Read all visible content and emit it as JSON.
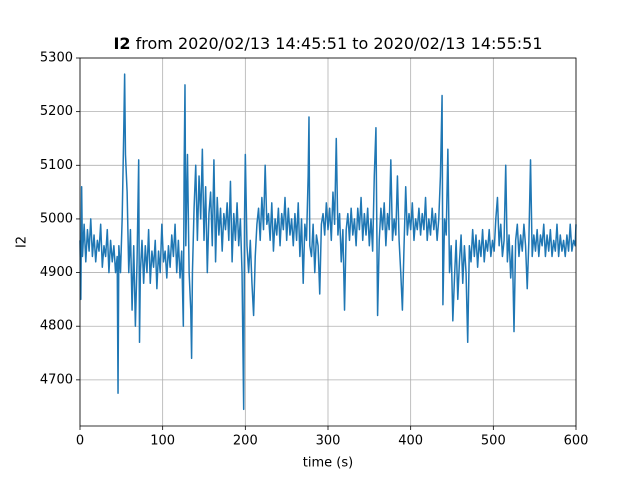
{
  "chart_data": {
    "type": "line",
    "title": {
      "bold": "I2",
      "rest": "from 2020/02/13 14:45:51 to 2020/02/13 14:55:51"
    },
    "xlabel": "time (s)",
    "ylabel": "I2",
    "color": "#1f77b4",
    "grid": true,
    "xlim": [
      0,
      600
    ],
    "xticks": [
      0,
      100,
      200,
      300,
      400,
      500,
      600
    ],
    "ylim": [
      4614,
      5300
    ],
    "yticks": [
      4700,
      4800,
      4900,
      5000,
      5100,
      5200,
      5300
    ],
    "x": [
      0,
      1,
      2,
      3,
      5,
      7,
      9,
      11,
      13,
      15,
      17,
      19,
      21,
      23,
      25,
      27,
      29,
      31,
      33,
      35,
      37,
      39,
      41,
      43,
      45,
      46,
      47,
      49,
      51,
      53,
      54,
      55,
      57,
      59,
      61,
      63,
      65,
      67,
      69,
      71,
      72,
      73,
      75,
      77,
      79,
      81,
      83,
      85,
      87,
      89,
      91,
      93,
      95,
      97,
      99,
      101,
      103,
      105,
      107,
      109,
      111,
      113,
      115,
      117,
      119,
      121,
      123,
      125,
      126,
      127,
      128,
      130,
      132,
      134,
      135,
      136,
      138,
      140,
      142,
      144,
      146,
      148,
      150,
      152,
      154,
      156,
      158,
      160,
      162,
      164,
      166,
      168,
      170,
      172,
      174,
      176,
      178,
      180,
      182,
      184,
      186,
      188,
      190,
      192,
      194,
      196,
      198,
      199,
      200,
      202,
      204,
      206,
      208,
      210,
      212,
      214,
      216,
      218,
      220,
      222,
      224,
      226,
      228,
      230,
      232,
      234,
      236,
      238,
      240,
      242,
      244,
      246,
      248,
      250,
      252,
      254,
      256,
      258,
      260,
      262,
      264,
      266,
      268,
      270,
      272,
      274,
      276,
      277,
      278,
      280,
      282,
      284,
      286,
      288,
      290,
      292,
      294,
      296,
      298,
      300,
      302,
      304,
      306,
      308,
      310,
      312,
      314,
      316,
      318,
      320,
      322,
      324,
      326,
      328,
      330,
      332,
      334,
      336,
      338,
      340,
      342,
      344,
      346,
      348,
      350,
      352,
      354,
      356,
      358,
      360,
      362,
      364,
      366,
      368,
      370,
      372,
      374,
      376,
      378,
      380,
      382,
      384,
      386,
      388,
      390,
      392,
      394,
      396,
      398,
      400,
      402,
      404,
      406,
      408,
      410,
      412,
      414,
      416,
      418,
      420,
      422,
      424,
      426,
      428,
      430,
      432,
      434,
      436,
      438,
      439,
      441,
      443,
      445,
      447,
      449,
      451,
      453,
      455,
      457,
      459,
      461,
      463,
      465,
      467,
      469,
      471,
      473,
      475,
      477,
      479,
      481,
      483,
      485,
      487,
      489,
      491,
      493,
      495,
      497,
      499,
      501,
      503,
      505,
      507,
      509,
      511,
      513,
      515,
      517,
      519,
      521,
      523,
      525,
      527,
      529,
      531,
      533,
      535,
      537,
      539,
      541,
      543,
      545,
      547,
      549,
      551,
      553,
      555,
      557,
      559,
      561,
      563,
      565,
      567,
      569,
      571,
      573,
      575,
      577,
      579,
      581,
      583,
      585,
      587,
      589,
      591,
      593,
      595,
      597,
      599,
      600
    ],
    "values": [
      4960,
      4850,
      5060,
      4930,
      4990,
      4920,
      4980,
      4940,
      5000,
      4930,
      4970,
      4920,
      4960,
      4940,
      4990,
      4910,
      4950,
      4930,
      4980,
      4900,
      4960,
      4920,
      4950,
      4900,
      4930,
      4675,
      4950,
      4900,
      5000,
      5170,
      5270,
      5120,
      5050,
      4900,
      4980,
      4830,
      4950,
      4800,
      4920,
      5110,
      4770,
      4900,
      4960,
      4880,
      4950,
      4900,
      4980,
      4880,
      4940,
      4910,
      4960,
      4870,
      4940,
      4900,
      4990,
      4920,
      4940,
      4890,
      4950,
      4910,
      4970,
      4930,
      4990,
      4900,
      4960,
      4890,
      4940,
      4800,
      5100,
      5250,
      4950,
      5120,
      4900,
      4830,
      4740,
      4900,
      5020,
      5100,
      4960,
      5080,
      5000,
      5130,
      4960,
      5060,
      4900,
      5010,
      5050,
      4950,
      5110,
      4920,
      5040,
      4970,
      5020,
      4940,
      5010,
      4980,
      5030,
      4960,
      5070,
      4920,
      5010,
      4960,
      5030,
      4950,
      5000,
      4900,
      4645,
      5000,
      5120,
      4950,
      4900,
      4960,
      4880,
      4820,
      4930,
      4990,
      5020,
      4960,
      5040,
      4980,
      5100,
      4990,
      5010,
      4960,
      5030,
      4940,
      5000,
      4970,
      5020,
      4950,
      5010,
      4980,
      5040,
      4960,
      5020,
      4970,
      5000,
      4950,
      5010,
      4960,
      5030,
      4930,
      5000,
      4880,
      4990,
      4960,
      5080,
      5190,
      4950,
      4930,
      4990,
      4900,
      4970,
      4950,
      4860,
      4990,
      5010,
      4970,
      5030,
      4980,
      5020,
      4960,
      5050,
      4990,
      5150,
      4970,
      5010,
      4920,
      4980,
      4830,
      4980,
      5010,
      4960,
      5020,
      4970,
      5000,
      4950,
      5020,
      4980,
      5040,
      4960,
      5010,
      4970,
      5020,
      4950,
      5000,
      4940,
      5080,
      5170,
      4820,
      4960,
      5020,
      4980,
      5030,
      4950,
      5010,
      4980,
      5110,
      4960,
      5000,
      4970,
      5080,
      4960,
      4900,
      4830,
      4950,
      5060,
      4970,
      5010,
      4980,
      5030,
      4960,
      5000,
      4980,
      5020,
      4970,
      5010,
      4980,
      5040,
      4960,
      5000,
      4970,
      5020,
      4980,
      5010,
      4960,
      5000,
      5080,
      5230,
      4840,
      5000,
      4970,
      5130,
      4900,
      4950,
      4810,
      4890,
      4960,
      4850,
      4920,
      4970,
      4880,
      4950,
      4900,
      4770,
      4950,
      4920,
      4980,
      4930,
      4970,
      4910,
      4960,
      4930,
      4980,
      4920,
      4960,
      4940,
      4980,
      4930,
      4960,
      4940,
      5000,
      5040,
      4950,
      4990,
      4930,
      4960,
      5100,
      4920,
      4970,
      4890,
      4950,
      4790,
      4960,
      4990,
      4930,
      4970,
      4940,
      4990,
      4950,
      4870,
      4960,
      5110,
      4930,
      4970,
      4940,
      4980,
      4930,
      4970,
      4950,
      4990,
      4930,
      4970,
      4940,
      4980,
      4930,
      4960,
      4940,
      4990,
      4930,
      4970,
      4940,
      4960,
      4930,
      4970,
      4940,
      4990,
      4940,
      4960,
      4950,
      4990
    ]
  }
}
